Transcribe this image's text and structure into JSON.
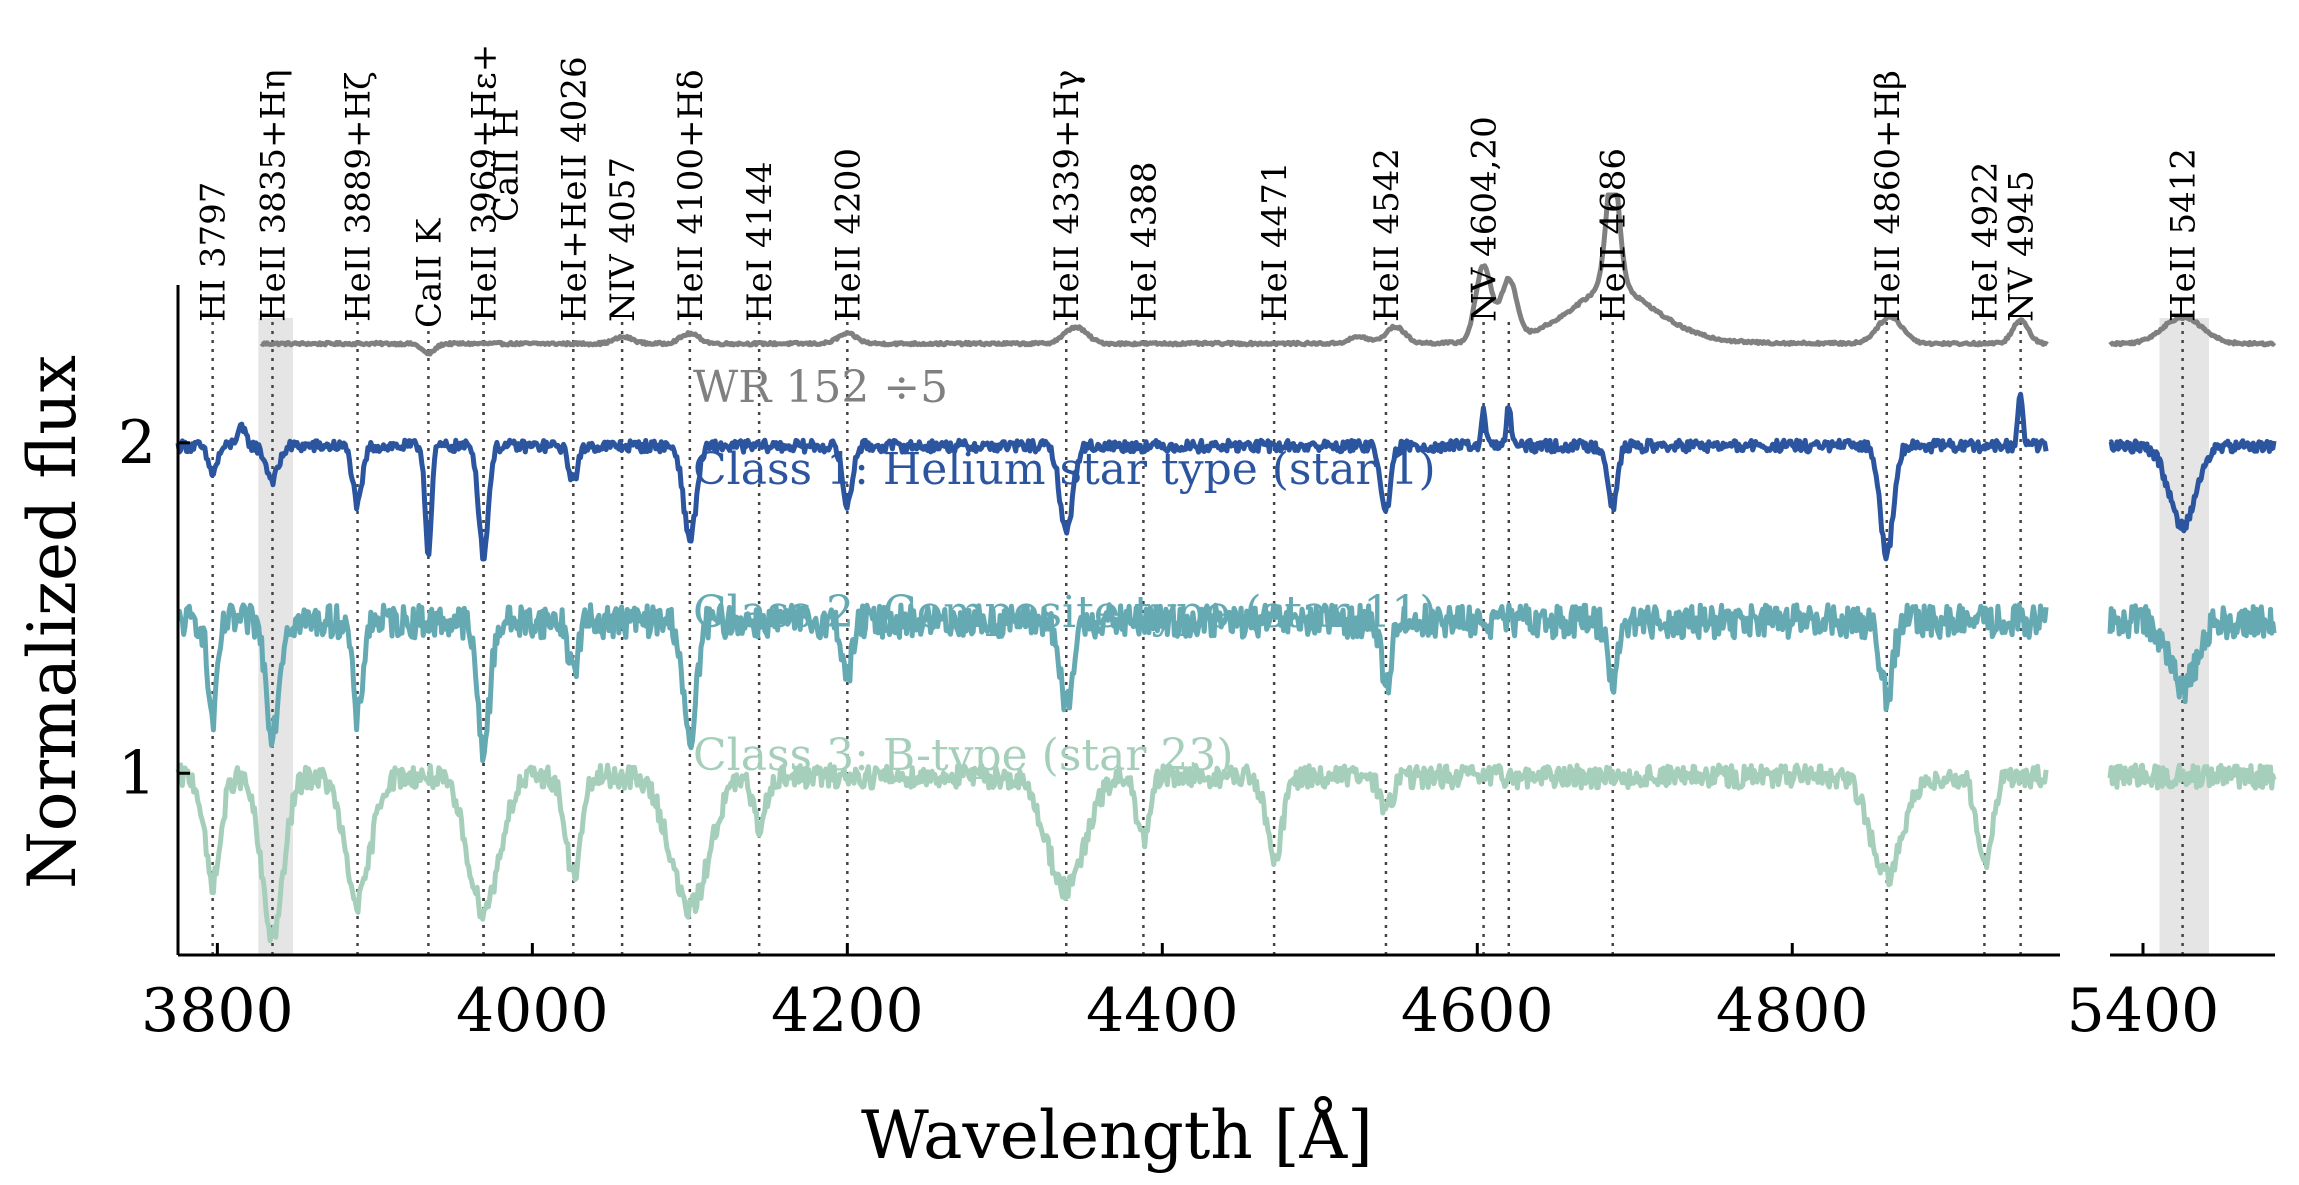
{
  "chart_data": {
    "type": "line",
    "xlabel": "Wavelength [Å]",
    "ylabel": "Normalized flux",
    "panels": [
      {
        "xlim": [
          3775,
          4970
        ],
        "xticks": [
          3800,
          4000,
          4200,
          4400,
          4600,
          4800
        ]
      },
      {
        "xlim": [
          5390,
          5440
        ],
        "xticks": [
          5400
        ]
      }
    ],
    "ylim": [
      0.45,
      2.75
    ],
    "yticks": [
      1,
      2
    ],
    "shaded_bands": [
      [
        3826,
        3848
      ],
      [
        5405,
        5420
      ]
    ],
    "lines": [
      {
        "wave": 3797,
        "label": "HI 3797"
      },
      {
        "wave": 3835,
        "label": "HeII 3835+Hη"
      },
      {
        "wave": 3889,
        "label": "HeII 3889+Hζ"
      },
      {
        "wave": 3934,
        "label": "CaII K"
      },
      {
        "wave": 3969,
        "label": "HeII 3969+Hε+"
      },
      {
        "wave": 3969,
        "label": "CaII H"
      },
      {
        "wave": 4026,
        "label": "HeI+HeII 4026"
      },
      {
        "wave": 4057,
        "label": "NIV 4057"
      },
      {
        "wave": 4100,
        "label": "HeII 4100+Hδ"
      },
      {
        "wave": 4144,
        "label": "HeI 4144"
      },
      {
        "wave": 4200,
        "label": "HeII 4200"
      },
      {
        "wave": 4339,
        "label": "HeII 4339+Hγ"
      },
      {
        "wave": 4388,
        "label": "HeI 4388"
      },
      {
        "wave": 4471,
        "label": "HeI 4471"
      },
      {
        "wave": 4542,
        "label": "HeII 4542"
      },
      {
        "wave": 4604,
        "label": "NV 4604,20"
      },
      {
        "wave": 4620,
        "label": ""
      },
      {
        "wave": 4686,
        "label": "HeII 4686"
      },
      {
        "wave": 4860,
        "label": "HeII 4860+Hβ"
      },
      {
        "wave": 4922,
        "label": "HeI 4922"
      },
      {
        "wave": 4945,
        "label": "NV 4945"
      },
      {
        "wave": 5412,
        "label": "HeII 5412"
      }
    ],
    "series": [
      {
        "name": "WR 152 ÷5",
        "color": "#808080",
        "continuum": 2.3,
        "noise": 0.004,
        "start": 3828,
        "features": [
          [
            3934,
            -0.03,
            4
          ],
          [
            4058,
            0.02,
            6
          ],
          [
            4100,
            0.03,
            6
          ],
          [
            4200,
            0.03,
            6
          ],
          [
            4345,
            0.05,
            7
          ],
          [
            4525,
            0.02,
            6
          ],
          [
            4548,
            0.05,
            6
          ],
          [
            4604,
            0.23,
            5
          ],
          [
            4620,
            0.18,
            5
          ],
          [
            4686,
            0.36,
            4
          ],
          [
            4686,
            0.12,
            30
          ],
          [
            4862,
            0.08,
            8
          ],
          [
            4945,
            0.07,
            5
          ],
          [
            5412,
            0.08,
            6
          ]
        ]
      },
      {
        "name": "Class 1: Helium star type (star 1)",
        "color": "#2c55a0",
        "continuum": 1.99,
        "noise": 0.018,
        "start": 3775,
        "features": [
          [
            3797,
            -0.08,
            3
          ],
          [
            3815,
            0.05,
            3
          ],
          [
            3835,
            -0.1,
            4
          ],
          [
            3889,
            -0.18,
            3
          ],
          [
            3934,
            -0.32,
            2
          ],
          [
            3969,
            -0.33,
            3
          ],
          [
            4026,
            -0.1,
            3
          ],
          [
            4100,
            -0.28,
            4
          ],
          [
            4200,
            -0.18,
            3
          ],
          [
            4339,
            -0.26,
            4
          ],
          [
            4542,
            -0.2,
            3
          ],
          [
            4604,
            0.1,
            1.5
          ],
          [
            4620,
            0.12,
            1.5
          ],
          [
            4686,
            -0.18,
            3
          ],
          [
            4860,
            -0.33,
            4
          ],
          [
            4945,
            0.16,
            1.5
          ],
          [
            5412,
            -0.24,
            4
          ]
        ]
      },
      {
        "name": "Class 2: Composite type (star 11)",
        "color": "#65aab3",
        "continuum": 1.46,
        "noise": 0.05,
        "start": 3775,
        "features": [
          [
            3797,
            -0.3,
            3
          ],
          [
            3835,
            -0.33,
            4
          ],
          [
            3889,
            -0.3,
            3
          ],
          [
            3969,
            -0.38,
            4
          ],
          [
            4026,
            -0.15,
            3
          ],
          [
            4100,
            -0.38,
            4
          ],
          [
            4200,
            -0.17,
            3
          ],
          [
            4339,
            -0.27,
            4
          ],
          [
            4542,
            -0.2,
            3
          ],
          [
            4686,
            -0.18,
            3
          ],
          [
            4860,
            -0.22,
            4
          ],
          [
            5412,
            -0.2,
            4
          ]
        ]
      },
      {
        "name": "Class 3: B-type (star 23)",
        "color": "#a5cfbb",
        "continuum": 0.99,
        "noise": 0.035,
        "start": 3775,
        "features": [
          [
            3797,
            -0.32,
            5
          ],
          [
            3835,
            -0.48,
            7
          ],
          [
            3889,
            -0.38,
            8
          ],
          [
            3969,
            -0.4,
            10
          ],
          [
            4026,
            -0.3,
            5
          ],
          [
            4100,
            -0.4,
            12
          ],
          [
            4144,
            -0.15,
            4
          ],
          [
            4339,
            -0.34,
            12
          ],
          [
            4388,
            -0.2,
            4
          ],
          [
            4471,
            -0.25,
            5
          ],
          [
            4542,
            -0.1,
            4
          ],
          [
            4860,
            -0.3,
            10
          ],
          [
            4922,
            -0.25,
            5
          ]
        ]
      }
    ]
  }
}
